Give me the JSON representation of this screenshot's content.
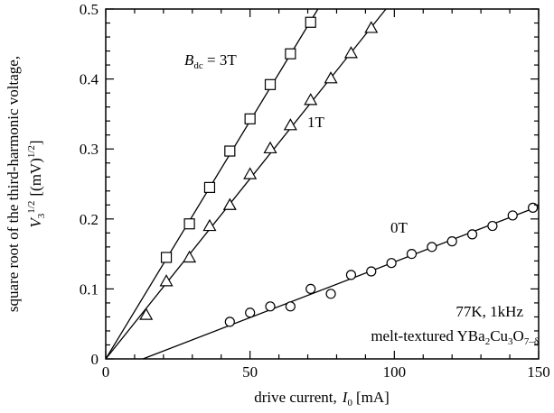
{
  "chart_data": {
    "type": "scatter",
    "xlabel_text": "drive current,",
    "xlabel_var": "I",
    "xlabel_sub": "0",
    "xlabel_unit": "[mA]",
    "ylabel_line1": "square root of the third-harmonic voltage,",
    "ylabel_var": "V",
    "ylabel_sub": "3",
    "ylabel_exp": "1/2",
    "ylabel_unit": "[(mV)",
    "ylabel_unit_exp": "1/2",
    "ylabel_close": "]",
    "xlim": [
      0,
      150
    ],
    "ylim": [
      0,
      0.5
    ],
    "xticks": [
      0,
      50,
      100,
      150
    ],
    "yticks": [
      0,
      0.1,
      0.2,
      0.3,
      0.4,
      0.5
    ],
    "xtick_labels": [
      "0",
      "50",
      "100",
      "150"
    ],
    "ytick_labels": [
      "0",
      "0.1",
      "0.2",
      "0.3",
      "0.4",
      "0.5"
    ],
    "series": [
      {
        "name": "3T",
        "marker": "square",
        "fit": [
          0.0068,
          0
        ],
        "points": [
          [
            21,
            0.145
          ],
          [
            29,
            0.193
          ],
          [
            36,
            0.245
          ],
          [
            43,
            0.297
          ],
          [
            50,
            0.343
          ],
          [
            57,
            0.392
          ],
          [
            64,
            0.436
          ],
          [
            71,
            0.481
          ]
        ]
      },
      {
        "name": "1T",
        "marker": "triangle",
        "fit": [
          0.00515,
          0
        ],
        "points": [
          [
            14,
            0.063
          ],
          [
            21,
            0.111
          ],
          [
            29,
            0.145
          ],
          [
            36,
            0.19
          ],
          [
            43,
            0.22
          ],
          [
            50,
            0.264
          ],
          [
            57,
            0.301
          ],
          [
            64,
            0.334
          ],
          [
            71,
            0.37
          ],
          [
            78,
            0.401
          ],
          [
            85,
            0.437
          ],
          [
            92,
            0.473
          ]
        ]
      },
      {
        "name": "0T",
        "marker": "circle",
        "fit": [
          0.00159,
          -0.0205
        ],
        "points": [
          [
            43,
            0.053
          ],
          [
            50,
            0.066
          ],
          [
            57,
            0.075
          ],
          [
            64,
            0.075
          ],
          [
            71,
            0.1
          ],
          [
            78,
            0.093
          ],
          [
            85,
            0.12
          ],
          [
            92,
            0.125
          ],
          [
            99,
            0.137
          ],
          [
            106,
            0.15
          ],
          [
            113,
            0.16
          ],
          [
            120,
            0.168
          ],
          [
            127,
            0.178
          ],
          [
            134,
            0.19
          ],
          [
            141,
            0.205
          ],
          [
            148,
            0.216
          ]
        ]
      }
    ],
    "annotations": {
      "b_var": "B",
      "b_sub": "dc",
      "b_value": " = 3T",
      "label_1t": "1T",
      "label_0t": "0T",
      "conditions": "77K, 1kHz",
      "sample_prefix": "melt-textured YBa",
      "sample_sub1": "2",
      "sample_mid": "Cu",
      "sample_sub2": "3",
      "sample_o": "O",
      "sample_sub3": "7–δ"
    }
  }
}
